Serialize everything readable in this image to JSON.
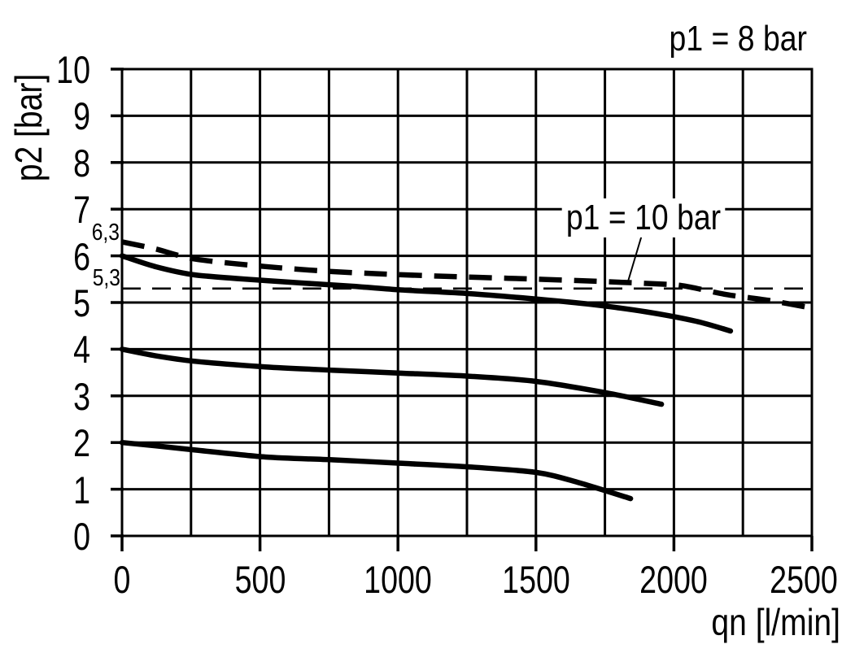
{
  "page": {
    "background": "#ffffff",
    "ink": "#000000"
  },
  "chart_data": {
    "type": "line",
    "title": "",
    "xlabel": "qn [l/min]",
    "ylabel": "p2 [bar]",
    "xlim": [
      0,
      2500
    ],
    "ylim": [
      0,
      10
    ],
    "x_grid_step": 250,
    "y_grid_step": 1,
    "x_ticks": [
      0,
      500,
      1000,
      1500,
      2000,
      2500
    ],
    "y_ticks": [
      0,
      1,
      2,
      3,
      4,
      5,
      6,
      7,
      8,
      9,
      10
    ],
    "grid": true,
    "legend_position": "none",
    "annotations": {
      "p1_8": {
        "text": "p1 = 8 bar",
        "location": "top-right"
      },
      "p1_10": {
        "text": "p1 = 10 bar",
        "points_to": "curve-p1-10bar"
      },
      "ref_6_3": {
        "text": "6,3",
        "value": 6.3
      },
      "ref_5_3": {
        "text": "5,3",
        "value": 5.3
      }
    },
    "series": [
      {
        "id": "curve-p1-10bar",
        "label": "p1 = 10 bar",
        "line": "dashed-thick",
        "points": [
          [
            0,
            6.3
          ],
          [
            120,
            6.15
          ],
          [
            265,
            5.93
          ],
          [
            520,
            5.77
          ],
          [
            740,
            5.67
          ],
          [
            950,
            5.61
          ],
          [
            1180,
            5.56
          ],
          [
            1400,
            5.52
          ],
          [
            1650,
            5.47
          ],
          [
            1900,
            5.41
          ],
          [
            2030,
            5.36
          ],
          [
            2190,
            5.17
          ],
          [
            2350,
            5.04
          ],
          [
            2500,
            4.88
          ]
        ]
      },
      {
        "id": "curve-p1-8bar",
        "label": "p1 = 8 bar",
        "line": "solid-thick",
        "points": [
          [
            0,
            6.0
          ],
          [
            120,
            5.77
          ],
          [
            265,
            5.59
          ],
          [
            520,
            5.47
          ],
          [
            830,
            5.35
          ],
          [
            1010,
            5.27
          ],
          [
            1260,
            5.19
          ],
          [
            1510,
            5.07
          ],
          [
            1700,
            4.96
          ],
          [
            1900,
            4.8
          ],
          [
            2080,
            4.6
          ],
          [
            2205,
            4.39
          ]
        ]
      },
      {
        "id": "curve-set-4bar",
        "label": "",
        "line": "solid-thick",
        "points": [
          [
            0,
            4.0
          ],
          [
            120,
            3.86
          ],
          [
            265,
            3.74
          ],
          [
            520,
            3.62
          ],
          [
            760,
            3.55
          ],
          [
            1000,
            3.49
          ],
          [
            1260,
            3.42
          ],
          [
            1500,
            3.31
          ],
          [
            1760,
            3.06
          ],
          [
            1955,
            2.82
          ]
        ]
      },
      {
        "id": "curve-set-2bar",
        "label": "",
        "line": "solid-thick",
        "points": [
          [
            0,
            2.0
          ],
          [
            120,
            1.93
          ],
          [
            265,
            1.84
          ],
          [
            520,
            1.69
          ],
          [
            760,
            1.63
          ],
          [
            1000,
            1.56
          ],
          [
            1250,
            1.48
          ],
          [
            1500,
            1.36
          ],
          [
            1650,
            1.15
          ],
          [
            1843,
            0.8
          ]
        ]
      },
      {
        "id": "ref-line-5-3",
        "label": "5,3",
        "line": "dashed-thin",
        "points": [
          [
            0,
            5.3
          ],
          [
            2500,
            5.3
          ]
        ]
      }
    ]
  }
}
